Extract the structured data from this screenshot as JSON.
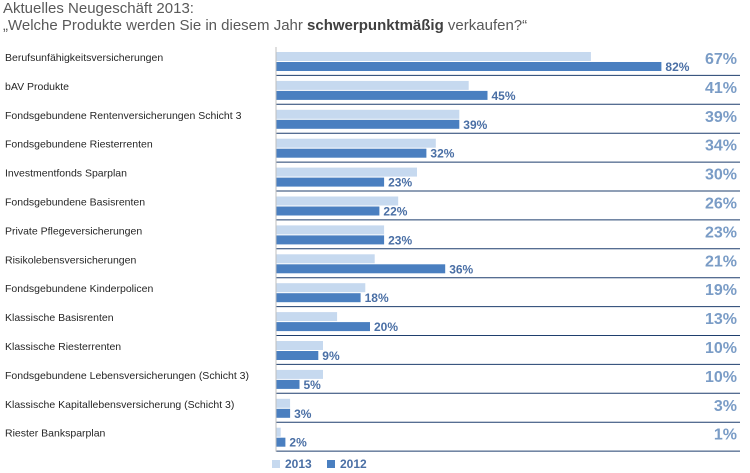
{
  "title": {
    "line1": "Aktuelles Neugeschäft 2013:",
    "line2_pre": "„Welche Produkte werden Sie in diesem Jahr ",
    "line2_bold": "schwerpunktmäßig",
    "line2_post": " verkaufen?“"
  },
  "colors": {
    "series_2013": "#c6d9ef",
    "series_2012": "#4a7fc0",
    "label_2013": "#7a9cc6",
    "label_2012": "#4a6fa5",
    "separator": "#1f3f6e",
    "category_text": "#262626"
  },
  "chart_data": {
    "type": "bar",
    "orientation": "horizontal",
    "categories": [
      "Berufsunfähigkeitsversicherungen",
      "bAV Produkte",
      "Fondsgebundene Rentenversicherungen Schicht 3",
      "Fondsgebundene Riesterrenten",
      "Investmentfonds Sparplan",
      "Fondsgebundene Basisrenten",
      "Private Pflegeversicherungen",
      "Risikolebensversicherungen",
      "Fondsgebundene Kinderpolicen",
      "Klassische Basisrenten",
      "Klassische Riesterrenten",
      "Fondsgebundene Lebensversicherungen (Schicht 3)",
      "Klassische Kapitallebensversicherung (Schicht 3)",
      "Riester Banksparplan"
    ],
    "series": [
      {
        "name": "2013",
        "values": [
          67,
          41,
          39,
          34,
          30,
          26,
          23,
          21,
          19,
          13,
          10,
          10,
          3,
          1
        ],
        "labels": [
          "67%",
          "41%",
          "39%",
          "34%",
          "30%",
          "26%",
          "23%",
          "21%",
          "19%",
          "13%",
          "10%",
          "10%",
          "3%",
          "1%"
        ]
      },
      {
        "name": "2012",
        "values": [
          82,
          45,
          39,
          32,
          23,
          22,
          23,
          36,
          18,
          20,
          9,
          5,
          3,
          2
        ],
        "labels": [
          "82%",
          "45%",
          "39%",
          "32%",
          "23%",
          "22%",
          "23%",
          "36%",
          "18%",
          "20%",
          "9%",
          "5%",
          "3%",
          "2%"
        ]
      }
    ],
    "unit": "%",
    "xlim": [
      0,
      100
    ],
    "legend": "bottom"
  }
}
